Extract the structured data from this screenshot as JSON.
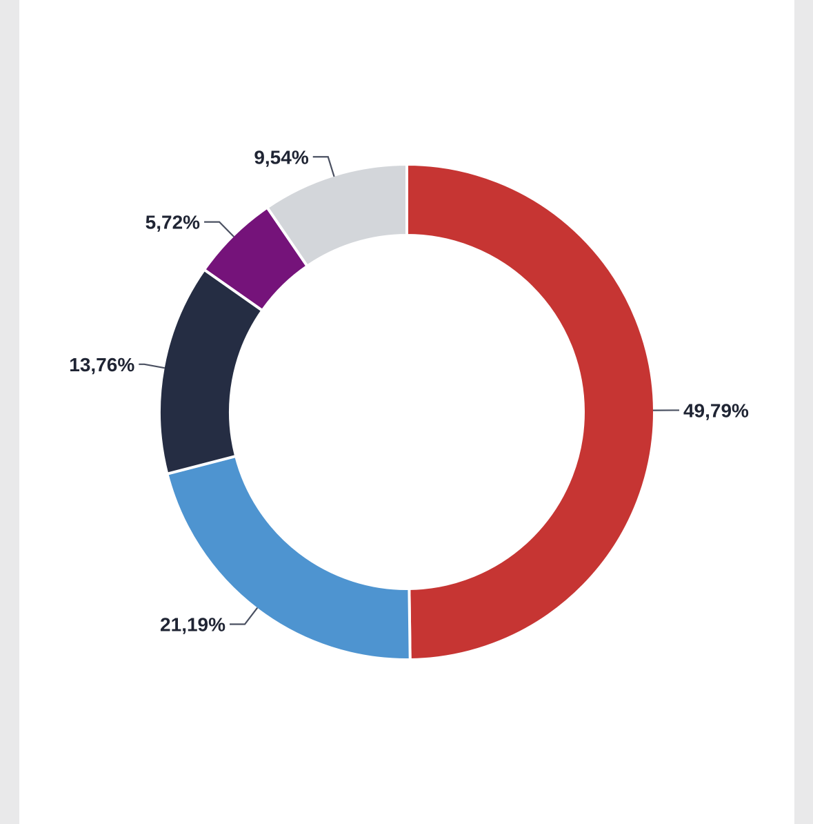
{
  "chart_data": {
    "type": "pie",
    "variant": "donut",
    "title": "",
    "legend": "none",
    "slices": [
      {
        "label": "49,79%",
        "value": 49.79,
        "color": "#c63533"
      },
      {
        "label": "21,19%",
        "value": 21.19,
        "color": "#4e94d0"
      },
      {
        "label": "13,76%",
        "value": 13.76,
        "color": "#252d43"
      },
      {
        "label": "5,72%",
        "value": 5.72,
        "color": "#75137a"
      },
      {
        "label": "9,54%",
        "value": 9.54,
        "color": "#d3d6da"
      }
    ]
  }
}
